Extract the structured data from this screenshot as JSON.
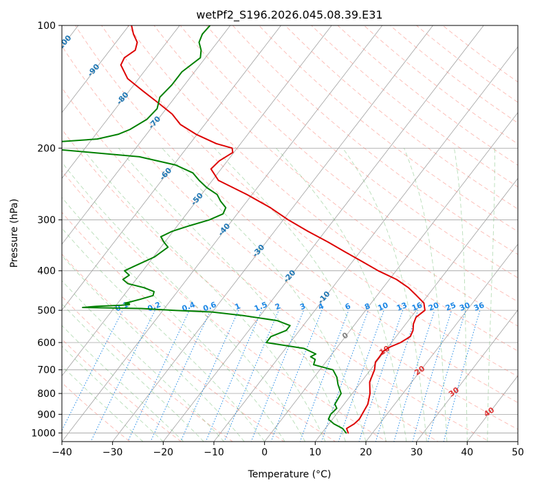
{
  "chart_data": {
    "type": "line",
    "title": "wetPf2_S196.2026.045.08.39.E31",
    "xlabel": "Temperature (°C)",
    "ylabel": "Pressure (hPa)",
    "xlim": [
      -40,
      50
    ],
    "ylim": [
      1050,
      100
    ],
    "y_scale": "log",
    "x_ticks": [
      -40,
      -30,
      -20,
      -10,
      0,
      10,
      20,
      30,
      40,
      50
    ],
    "y_ticks": [
      1000,
      900,
      800,
      700,
      600,
      500,
      400,
      300,
      200,
      100
    ],
    "grid": true,
    "colors": {
      "temperature": "#dd0000",
      "dewpoint": "#008000",
      "dry_adiabat": "#fa8072",
      "moist_adiabat": "#5fb35f",
      "mixing_ratio": "#1e88e5",
      "isotherm": "#808080",
      "dry_adiabat_label": "#1f77b4"
    },
    "series": [
      {
        "key": "temperature",
        "pressure": [
          1000,
          975,
          950,
          925,
          900,
          850,
          800,
          750,
          700,
          670,
          650,
          630,
          615,
          600,
          580,
          560,
          540,
          520,
          500,
          480,
          460,
          440,
          420,
          400,
          380,
          360,
          340,
          320,
          300,
          280,
          260,
          240,
          225,
          215,
          205,
          200,
          195,
          185,
          175,
          165,
          155,
          145,
          135,
          125,
          120,
          115,
          110,
          105,
          100
        ],
        "value": [
          15.2,
          14.2,
          15.0,
          15.3,
          15.1,
          14.7,
          13.5,
          11.7,
          10.8,
          9.8,
          9.8,
          9.7,
          10.4,
          11.8,
          12.8,
          12.4,
          11.5,
          11.0,
          11.7,
          10.4,
          7.8,
          5.0,
          1.4,
          -3.5,
          -8.0,
          -12.8,
          -17.8,
          -23.4,
          -29.0,
          -34.4,
          -41.0,
          -48.8,
          -52.0,
          -51.6,
          -50.2,
          -51.0,
          -54.8,
          -60.2,
          -64.8,
          -68.0,
          -72.4,
          -77.2,
          -82.2,
          -85.6,
          -86.0,
          -85.0,
          -85.8,
          -87.8,
          -89.5
        ]
      },
      {
        "key": "dewpoint",
        "pressure": [
          1000,
          975,
          950,
          925,
          900,
          870,
          850,
          800,
          760,
          730,
          700,
          680,
          660,
          650,
          640,
          620,
          600,
          580,
          560,
          545,
          530,
          515,
          505,
          500,
          495,
          493,
          492,
          489,
          486,
          484,
          482,
          480,
          478,
          470,
          460,
          450,
          440,
          430,
          420,
          410,
          400,
          390,
          370,
          350,
          340,
          330,
          320,
          310,
          300,
          290,
          280,
          270,
          260,
          250,
          240,
          230,
          220,
          210,
          205,
          200,
          198,
          196,
          194,
          190,
          185,
          180,
          170,
          160,
          150,
          140,
          130,
          120,
          115,
          110,
          105,
          100
        ],
        "value": [
          14.8,
          13.4,
          11.0,
          9.2,
          8.9,
          9.2,
          8.2,
          7.8,
          5.8,
          4.5,
          2.6,
          -2.0,
          -2.5,
          -3.8,
          -3.2,
          -6.4,
          -14.7,
          -14.7,
          -12.6,
          -12.6,
          -15.9,
          -23.4,
          -30.0,
          -38.0,
          -44.5,
          -52.5,
          -56.3,
          -53.8,
          -49.0,
          -47.5,
          -47.6,
          -48.6,
          -48.0,
          -46.2,
          -44.2,
          -44.6,
          -47.2,
          -51.0,
          -52.6,
          -52.0,
          -53.6,
          -52.4,
          -49.8,
          -48.6,
          -50.2,
          -51.6,
          -50.2,
          -47.6,
          -44.6,
          -42.8,
          -43.2,
          -45.2,
          -46.9,
          -50.0,
          -52.6,
          -55.0,
          -59.6,
          -68.0,
          -78.0,
          -88.5,
          -90.5,
          -90.5,
          -89.0,
          -79.0,
          -75.6,
          -74.0,
          -72.2,
          -71.8,
          -73.0,
          -72.5,
          -72.5,
          -71.0,
          -72.0,
          -73.6,
          -74.2,
          -74.0
        ]
      }
    ],
    "isotherm_labels": [
      {
        "text": "0",
        "temp": 0
      },
      {
        "text": "10",
        "temp": 10
      },
      {
        "text": "20",
        "temp": 20
      },
      {
        "text": "30",
        "temp": 30
      },
      {
        "text": "40",
        "temp": 40
      }
    ],
    "dry_adiabat_labels": [
      {
        "text": "-100",
        "temp": -100
      },
      {
        "text": "-90",
        "temp": -90
      },
      {
        "text": "-80",
        "temp": -80
      },
      {
        "text": "-70",
        "temp": -70
      },
      {
        "text": "-60",
        "temp": -60
      },
      {
        "text": "-50",
        "temp": -50
      },
      {
        "text": "-40",
        "temp": -40
      },
      {
        "text": "-30",
        "temp": -30
      },
      {
        "text": "-20",
        "temp": -20
      },
      {
        "text": "-10",
        "temp": -10
      }
    ],
    "mixing_ratio_labels": [
      "0.1",
      "0.2",
      "0.4",
      "0.6",
      "1",
      "1.5",
      "2",
      "3",
      "4",
      "6",
      "8",
      "10",
      "13",
      "16",
      "20",
      "25",
      "30",
      "36"
    ]
  }
}
